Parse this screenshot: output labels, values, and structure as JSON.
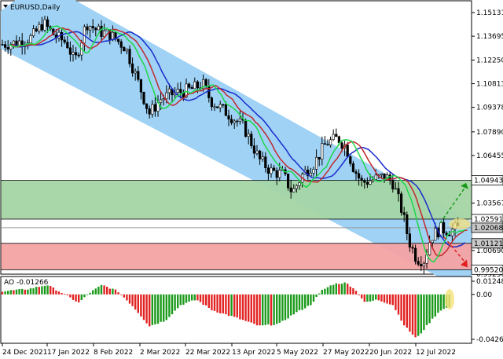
{
  "window": {
    "title": "EURUSD,Daily",
    "menu_icon": "triangle-down-icon"
  },
  "price_axis": {
    "labels": [
      "1.15131",
      "1.13695",
      "1.12250",
      "1.10813",
      "1.09378",
      "1.07890",
      "1.06455",
      "1.05018",
      "1.03567",
      "1.02010",
      "1.00690",
      "0.99250"
    ],
    "values": [
      1.15131,
      1.13695,
      1.1225,
      1.10813,
      1.09378,
      1.0789,
      1.06455,
      1.05018,
      1.03567,
      1.0201,
      1.0069,
      0.9925
    ]
  },
  "price_markers": [
    {
      "label": "1.04943",
      "value": 1.04943,
      "style": "boxed"
    },
    {
      "label": "1.02591",
      "value": 1.02591,
      "style": "boxed"
    },
    {
      "label": "1.02068",
      "value": 1.02068,
      "style": "current"
    },
    {
      "label": "1.01121",
      "value": 1.01121,
      "style": "current"
    },
    {
      "label": "0.99520",
      "value": 0.9952,
      "style": "boxed"
    }
  ],
  "zones": {
    "green_zone": {
      "top": 1.04943,
      "bottom": 1.02591,
      "color": "#a5d5a5"
    },
    "red_zone": {
      "top": 1.01121,
      "bottom": 0.9952,
      "color": "#f4a3a3"
    },
    "current_price_line": 1.02068
  },
  "indicator": {
    "label": "AO -0.01266",
    "axis_labels": [
      "0.012484",
      "0.00",
      "-0.042635"
    ],
    "axis_values": [
      0.012484,
      0,
      -0.042635
    ]
  },
  "time_axis": {
    "labels": [
      "24 Dec 2021",
      "17 Jan 2022",
      "8 Feb 2022",
      "2 Mar 2022",
      "22 Mar 2022",
      "13 Apr 2022",
      "5 May 2022",
      "27 May 2022",
      "20 Jun 2022",
      "12 Jul 2022"
    ]
  },
  "colors": {
    "channel": "#9fd2f5",
    "bull_candle": "#ffffff",
    "bear_candle": "#000000",
    "ma_fast": "#1fd64a",
    "ma_mid": "#c0282e",
    "ma_slow": "#1a2bcc",
    "ao_up": "#1c9a1c",
    "ao_down": "#e22222",
    "arrow_up": "#1a9a1a",
    "arrow_down": "#e02020",
    "highlight": "#f6e27a"
  },
  "chart_data": {
    "type": "candlestick",
    "symbol": "EURUSD",
    "timeframe": "Daily",
    "ylim": [
      0.9925,
      1.1584
    ],
    "last_close": 1.02068,
    "support_resistance": [
      1.04943,
      1.02591,
      1.01121,
      0.9952
    ],
    "ao_last": -0.01266,
    "ao_ylim": [
      -0.0455,
      0.0145
    ]
  }
}
